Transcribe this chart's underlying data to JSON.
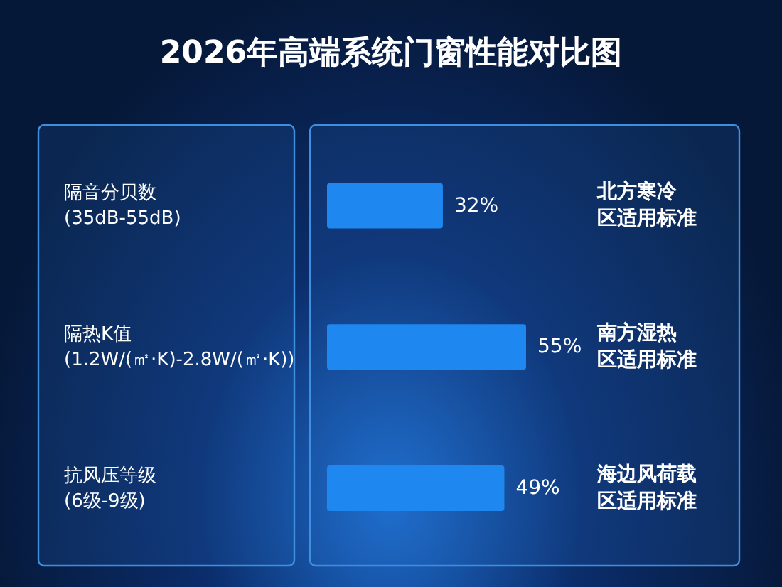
{
  "chart_data": {
    "type": "bar",
    "orientation": "horizontal",
    "title": "2026年高端系统门窗性能对比图",
    "categories": [
      "隔音分贝数\n(35dB-55dB)",
      "隔热K值\n(1.2W/(㎡·K)-2.8W/(㎡·K))",
      "抗风压等级\n(6级-9级)"
    ],
    "y2_categories": [
      "北方寒冷区适用标准",
      "南方湿热区适用标准",
      "海边风荷载区适用标准"
    ],
    "values": [
      32,
      55,
      49
    ],
    "color": "#1e88f0",
    "value_labels": [
      "32%",
      "55%",
      "49%"
    ]
  }
}
